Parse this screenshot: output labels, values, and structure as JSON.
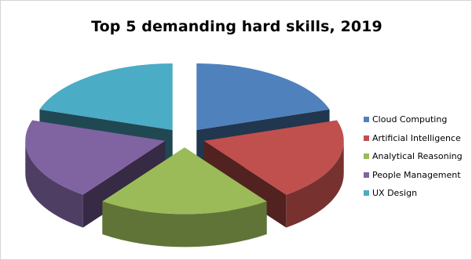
{
  "chart_data": {
    "type": "pie",
    "style": "3d-exploded",
    "title": "Top 5 demanding hard skills, 2019",
    "categories": [
      "Cloud Computing",
      "Artificial Intelligence",
      "Analytical Reasoning",
      "People Management",
      "UX Design"
    ],
    "values": [
      20,
      20,
      20,
      20,
      20
    ],
    "colors": [
      "#4f81bd",
      "#c0504d",
      "#9bbb59",
      "#8064a2",
      "#4bacc6"
    ],
    "legend_position": "right"
  }
}
